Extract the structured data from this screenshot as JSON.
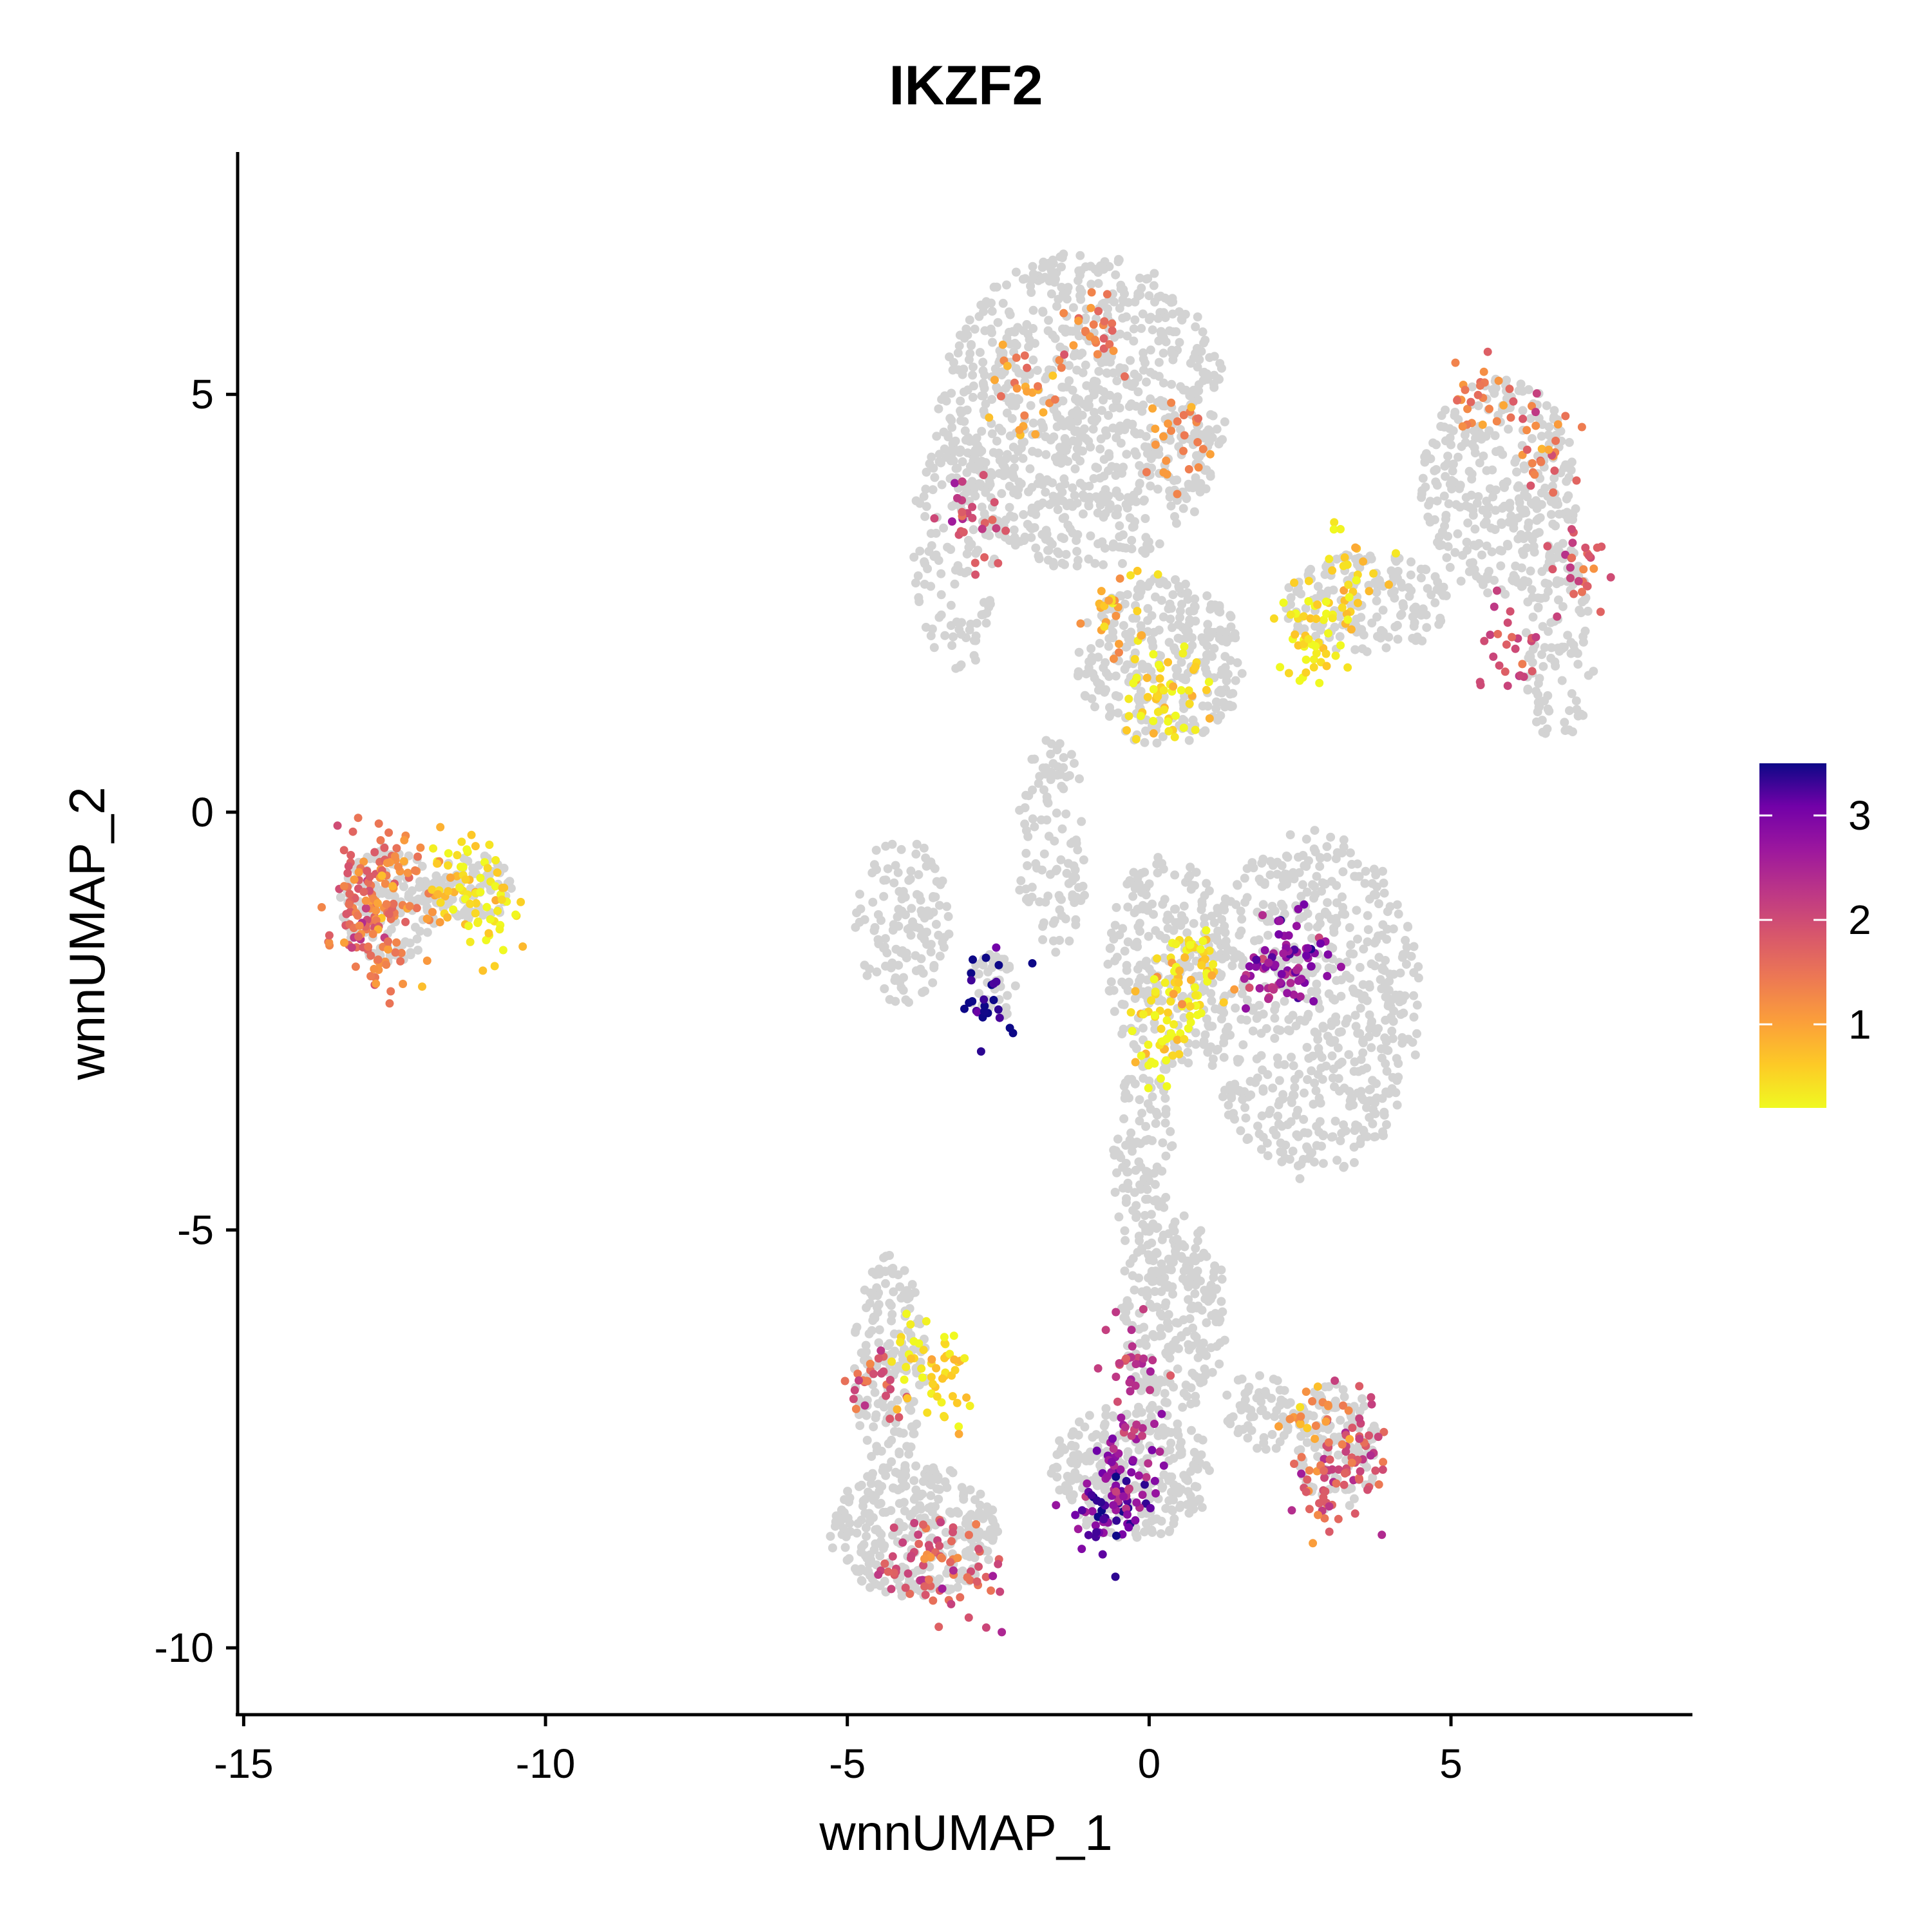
{
  "chart_data": {
    "type": "scatter",
    "title": "IKZF2",
    "xlabel": "wnnUMAP_1",
    "ylabel": "wnnUMAP_2",
    "xlim": [
      -15.1,
      9.0
    ],
    "ylim": [
      -10.8,
      7.9
    ],
    "xticks": [
      -15,
      -10,
      -5,
      0,
      5
    ],
    "xtick_labels": [
      "-15",
      "-10",
      "-5",
      "0",
      "5"
    ],
    "yticks": [
      -10,
      -5,
      0,
      5
    ],
    "ytick_labels": [
      "-10",
      "-5",
      "0",
      "5"
    ],
    "grid": false,
    "background_color": "#d3d3d3",
    "colorscale": "plasma (reversed)",
    "color_low": "#f0f921",
    "color_high": "#0d0887",
    "colorbar": {
      "range": [
        0.2,
        3.5
      ],
      "ticks": [
        1,
        2,
        3
      ],
      "tick_labels": [
        "1",
        "2",
        "3"
      ],
      "placement": "right"
    },
    "series": [
      {
        "x": [
          -13.0,
          -12.6,
          -12.9,
          -12.4,
          -13.2,
          -12.7
        ],
        "y": [
          -0.6,
          -1.0,
          -1.4,
          -0.8,
          -1.1,
          -1.8
        ],
        "value": [
          1.6,
          1.4,
          1.8,
          1.2,
          1.5,
          1.3
        ]
      },
      {
        "x": [
          -11.5,
          -11.2,
          -10.8
        ],
        "y": [
          -0.7,
          -0.9,
          -1.3
        ],
        "value": [
          0.6,
          0.4,
          0.3
        ]
      },
      {
        "x": [
          3.2,
          3.5,
          2.7,
          3.0
        ],
        "y": [
          -7.8,
          -7.5,
          -7.3,
          -8.2
        ],
        "value": [
          2.0,
          1.8,
          1.1,
          1.7
        ]
      },
      {
        "x": [
          -0.6,
          -0.4,
          -0.9,
          -0.2,
          -0.3
        ],
        "y": [
          -8.3,
          -8.0,
          -8.4,
          -7.6,
          -6.5
        ],
        "value": [
          3.0,
          2.8,
          3.2,
          2.5,
          2.2
        ]
      },
      {
        "x": [
          -4.0,
          -3.5,
          -3.0,
          -4.5,
          -3.7,
          -3.4
        ],
        "y": [
          -9.0,
          -8.8,
          -9.3,
          -6.8,
          -6.4,
          -6.9
        ],
        "value": [
          2.0,
          1.7,
          1.9,
          1.8,
          0.4,
          0.5
        ]
      },
      {
        "x": [
          2.3,
          2.5,
          2.0,
          -2.7
        ],
        "y": [
          -1.7,
          -1.6,
          -1.9,
          -2.2
        ],
        "value": [
          2.8,
          3.0,
          2.6,
          3.4
        ]
      },
      {
        "x": [
          0.5,
          0.3,
          0.8,
          0.2
        ],
        "y": [
          -2.0,
          -2.3,
          -1.8,
          -2.8
        ],
        "value": [
          0.3,
          0.4,
          0.5,
          0.3
        ]
      },
      {
        "x": [
          0.2,
          0.4,
          -0.5,
          2.6,
          2.9,
          3.4
        ],
        "y": [
          1.3,
          1.5,
          2.4,
          2.0,
          2.3,
          2.7
        ],
        "value": [
          0.3,
          0.4,
          0.8,
          0.3,
          0.4,
          0.5
        ]
      },
      {
        "x": [
          -2.0,
          -1.0,
          0.5,
          -3.0,
          5.5,
          6.5,
          7.0,
          6.0
        ],
        "y": [
          5.0,
          5.8,
          4.5,
          3.5,
          5.0,
          4.3,
          3.0,
          2.0
        ],
        "value": [
          1.2,
          1.5,
          1.3,
          2.0,
          1.4,
          1.6,
          1.8,
          1.9
        ]
      }
    ]
  }
}
